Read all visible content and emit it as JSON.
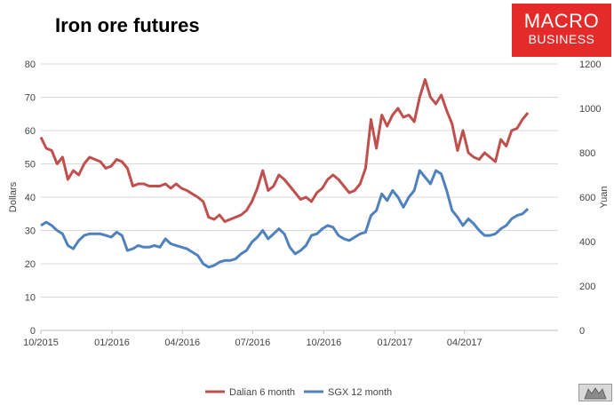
{
  "title": "Iron ore futures",
  "logo": {
    "line1": "MACRO",
    "line2": "BUSINESS"
  },
  "colors": {
    "dalian": "#c0504d",
    "sgx": "#4f81bd",
    "grid": "#d9d9d9",
    "axis": "#bfbfbf",
    "logo_bg": "#e52a2a"
  },
  "chart_data": {
    "type": "line",
    "title": "Iron ore futures",
    "ylabel": "Dollars",
    "y2label": "Yuan",
    "ylim": [
      0,
      80
    ],
    "y2lim": [
      0,
      1200
    ],
    "yticks": [
      0,
      10,
      20,
      30,
      40,
      50,
      60,
      70,
      80
    ],
    "y2ticks": [
      0,
      200,
      400,
      600,
      800,
      1000,
      1200
    ],
    "xticks": [
      "10/2015",
      "01/2016",
      "04/2016",
      "07/2016",
      "10/2016",
      "01/2017",
      "04/2017"
    ],
    "grid": "horizontal",
    "legend": "bottom",
    "series": [
      {
        "name": "Dalian 6 month",
        "axis": "right",
        "color": "#c0504d",
        "points": [
          [
            "2015-10-01",
            870
          ],
          [
            "2015-10-08",
            820
          ],
          [
            "2015-10-15",
            810
          ],
          [
            "2015-10-22",
            750
          ],
          [
            "2015-10-29",
            780
          ],
          [
            "2015-11-05",
            680
          ],
          [
            "2015-11-12",
            720
          ],
          [
            "2015-11-19",
            700
          ],
          [
            "2015-11-26",
            750
          ],
          [
            "2015-12-03",
            780
          ],
          [
            "2015-12-10",
            770
          ],
          [
            "2015-12-17",
            760
          ],
          [
            "2015-12-24",
            730
          ],
          [
            "2015-12-31",
            740
          ],
          [
            "2016-01-07",
            770
          ],
          [
            "2016-01-14",
            760
          ],
          [
            "2016-01-21",
            730
          ],
          [
            "2016-01-28",
            650
          ],
          [
            "2016-02-04",
            660
          ],
          [
            "2016-02-11",
            660
          ],
          [
            "2016-02-18",
            650
          ],
          [
            "2016-02-25",
            650
          ],
          [
            "2016-03-03",
            650
          ],
          [
            "2016-03-10",
            660
          ],
          [
            "2016-03-17",
            640
          ],
          [
            "2016-03-24",
            660
          ],
          [
            "2016-03-31",
            640
          ],
          [
            "2016-04-07",
            630
          ],
          [
            "2016-04-14",
            615
          ],
          [
            "2016-04-21",
            600
          ],
          [
            "2016-04-28",
            580
          ],
          [
            "2016-05-05",
            510
          ],
          [
            "2016-05-12",
            500
          ],
          [
            "2016-05-19",
            520
          ],
          [
            "2016-05-26",
            490
          ],
          [
            "2016-06-02",
            500
          ],
          [
            "2016-06-09",
            510
          ],
          [
            "2016-06-16",
            520
          ],
          [
            "2016-06-23",
            540
          ],
          [
            "2016-06-30",
            580
          ],
          [
            "2016-07-07",
            640
          ],
          [
            "2016-07-14",
            720
          ],
          [
            "2016-07-21",
            630
          ],
          [
            "2016-07-28",
            650
          ],
          [
            "2016-08-04",
            700
          ],
          [
            "2016-08-11",
            680
          ],
          [
            "2016-08-18",
            650
          ],
          [
            "2016-08-25",
            620
          ],
          [
            "2016-09-01",
            590
          ],
          [
            "2016-09-08",
            600
          ],
          [
            "2016-09-15",
            580
          ],
          [
            "2016-09-22",
            620
          ],
          [
            "2016-09-29",
            640
          ],
          [
            "2016-10-06",
            680
          ],
          [
            "2016-10-13",
            700
          ],
          [
            "2016-10-20",
            680
          ],
          [
            "2016-10-27",
            650
          ],
          [
            "2016-11-03",
            620
          ],
          [
            "2016-11-10",
            630
          ],
          [
            "2016-11-17",
            660
          ],
          [
            "2016-11-24",
            730
          ],
          [
            "2016-12-01",
            950
          ],
          [
            "2016-12-08",
            820
          ],
          [
            "2016-12-15",
            970
          ],
          [
            "2016-12-22",
            920
          ],
          [
            "2016-12-29",
            970
          ],
          [
            "2017-01-05",
            1000
          ],
          [
            "2017-01-12",
            960
          ],
          [
            "2017-01-19",
            970
          ],
          [
            "2017-01-26",
            940
          ],
          [
            "2017-02-02",
            1050
          ],
          [
            "2017-02-09",
            1130
          ],
          [
            "2017-02-16",
            1050
          ],
          [
            "2017-02-23",
            1020
          ],
          [
            "2017-03-02",
            1060
          ],
          [
            "2017-03-09",
            990
          ],
          [
            "2017-03-16",
            930
          ],
          [
            "2017-03-23",
            810
          ],
          [
            "2017-03-30",
            900
          ],
          [
            "2017-04-06",
            800
          ],
          [
            "2017-04-13",
            780
          ],
          [
            "2017-04-20",
            770
          ],
          [
            "2017-04-27",
            800
          ],
          [
            "2017-05-04",
            780
          ],
          [
            "2017-05-11",
            760
          ],
          [
            "2017-05-18",
            860
          ],
          [
            "2017-05-25",
            830
          ],
          [
            "2017-06-01",
            900
          ],
          [
            "2017-06-08",
            910
          ],
          [
            "2017-06-15",
            950
          ],
          [
            "2017-06-22",
            980
          ]
        ]
      },
      {
        "name": "SGX 12 month",
        "axis": "left",
        "color": "#4f81bd",
        "points": [
          [
            "2015-10-01",
            31.5
          ],
          [
            "2015-10-08",
            32.5
          ],
          [
            "2015-10-15",
            31.5
          ],
          [
            "2015-10-22",
            30
          ],
          [
            "2015-10-29",
            29
          ],
          [
            "2015-11-05",
            25.5
          ],
          [
            "2015-11-12",
            24.5
          ],
          [
            "2015-11-19",
            27
          ],
          [
            "2015-11-26",
            28.5
          ],
          [
            "2015-12-03",
            29
          ],
          [
            "2015-12-10",
            29
          ],
          [
            "2015-12-17",
            29
          ],
          [
            "2015-12-24",
            28.5
          ],
          [
            "2015-12-31",
            28
          ],
          [
            "2016-01-07",
            29.5
          ],
          [
            "2016-01-14",
            28.5
          ],
          [
            "2016-01-21",
            24
          ],
          [
            "2016-01-28",
            24.5
          ],
          [
            "2016-02-04",
            25.5
          ],
          [
            "2016-02-11",
            25
          ],
          [
            "2016-02-18",
            25
          ],
          [
            "2016-02-25",
            25.5
          ],
          [
            "2016-03-03",
            25
          ],
          [
            "2016-03-10",
            27.5
          ],
          [
            "2016-03-17",
            26
          ],
          [
            "2016-03-24",
            25.5
          ],
          [
            "2016-03-31",
            25
          ],
          [
            "2016-04-07",
            24.5
          ],
          [
            "2016-04-14",
            23.5
          ],
          [
            "2016-04-21",
            22.5
          ],
          [
            "2016-04-28",
            20
          ],
          [
            "2016-05-05",
            19
          ],
          [
            "2016-05-12",
            19.5
          ],
          [
            "2016-05-19",
            20.5
          ],
          [
            "2016-05-26",
            21
          ],
          [
            "2016-06-02",
            21
          ],
          [
            "2016-06-09",
            21.5
          ],
          [
            "2016-06-16",
            23
          ],
          [
            "2016-06-23",
            24
          ],
          [
            "2016-06-30",
            26.5
          ],
          [
            "2016-07-07",
            28
          ],
          [
            "2016-07-14",
            30
          ],
          [
            "2016-07-21",
            27.5
          ],
          [
            "2016-07-28",
            29
          ],
          [
            "2016-08-04",
            30.5
          ],
          [
            "2016-08-11",
            29
          ],
          [
            "2016-08-18",
            25
          ],
          [
            "2016-08-25",
            23
          ],
          [
            "2016-09-01",
            24
          ],
          [
            "2016-09-08",
            25.5
          ],
          [
            "2016-09-15",
            28.5
          ],
          [
            "2016-09-22",
            29
          ],
          [
            "2016-09-29",
            30.5
          ],
          [
            "2016-10-06",
            31.5
          ],
          [
            "2016-10-13",
            31
          ],
          [
            "2016-10-20",
            28.5
          ],
          [
            "2016-10-27",
            27.5
          ],
          [
            "2016-11-03",
            27
          ],
          [
            "2016-11-10",
            28
          ],
          [
            "2016-11-17",
            29
          ],
          [
            "2016-11-24",
            29.5
          ],
          [
            "2016-12-01",
            34.5
          ],
          [
            "2016-12-08",
            36
          ],
          [
            "2016-12-15",
            41
          ],
          [
            "2016-12-22",
            39
          ],
          [
            "2016-12-29",
            42
          ],
          [
            "2017-01-05",
            40
          ],
          [
            "2017-01-12",
            37
          ],
          [
            "2017-01-19",
            40
          ],
          [
            "2017-01-26",
            42
          ],
          [
            "2017-02-02",
            48
          ],
          [
            "2017-02-09",
            46
          ],
          [
            "2017-02-16",
            44
          ],
          [
            "2017-02-23",
            48
          ],
          [
            "2017-03-02",
            47
          ],
          [
            "2017-03-09",
            42
          ],
          [
            "2017-03-16",
            36
          ],
          [
            "2017-03-23",
            34
          ],
          [
            "2017-03-30",
            31.5
          ],
          [
            "2017-04-06",
            33.5
          ],
          [
            "2017-04-13",
            32
          ],
          [
            "2017-04-20",
            30
          ],
          [
            "2017-04-27",
            28.5
          ],
          [
            "2017-05-04",
            28.5
          ],
          [
            "2017-05-11",
            29
          ],
          [
            "2017-05-18",
            30.5
          ],
          [
            "2017-05-25",
            31.5
          ],
          [
            "2017-06-01",
            33.5
          ],
          [
            "2017-06-08",
            34.5
          ],
          [
            "2017-06-15",
            35
          ],
          [
            "2017-06-22",
            36.5
          ]
        ]
      }
    ]
  }
}
